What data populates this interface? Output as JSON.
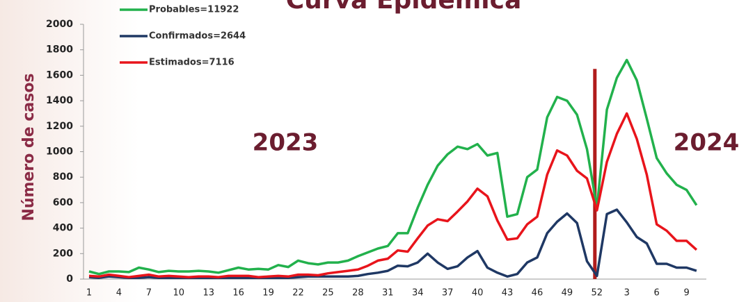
{
  "chart_data": {
    "type": "line",
    "title": "Curva Epidémica",
    "y_label": "Número de casos",
    "annotations": [
      "2023",
      "2024"
    ],
    "categories": [
      1,
      null,
      null,
      4,
      null,
      null,
      7,
      null,
      null,
      10,
      null,
      null,
      13,
      null,
      null,
      16,
      null,
      null,
      19,
      null,
      null,
      22,
      null,
      null,
      25,
      null,
      null,
      28,
      null,
      null,
      31,
      null,
      null,
      34,
      null,
      null,
      37,
      null,
      null,
      40,
      null,
      null,
      43,
      null,
      null,
      46,
      null,
      null,
      49,
      null,
      null,
      52,
      null,
      null,
      3,
      null,
      null,
      6,
      null,
      null,
      9,
      null
    ],
    "series": [
      {
        "name": "Probables=11922",
        "color": "#22b14c",
        "values": [
          60,
          40,
          60,
          60,
          55,
          90,
          75,
          55,
          65,
          60,
          60,
          65,
          60,
          50,
          70,
          90,
          75,
          80,
          75,
          110,
          95,
          145,
          125,
          115,
          130,
          130,
          145,
          180,
          210,
          240,
          260,
          360,
          360,
          560,
          740,
          890,
          980,
          1040,
          1020,
          1060,
          970,
          990,
          490,
          510,
          800,
          860,
          1270,
          1430,
          1400,
          1290,
          1020,
          560,
          1330,
          1580,
          1720,
          1560,
          1260,
          950,
          830,
          740,
          700,
          580
        ]
      },
      {
        "name": "Confirmados=2644",
        "color": "#1f3864",
        "values": [
          15,
          10,
          20,
          15,
          10,
          10,
          15,
          10,
          10,
          10,
          10,
          10,
          10,
          10,
          10,
          10,
          10,
          10,
          10,
          10,
          10,
          15,
          20,
          20,
          20,
          20,
          20,
          25,
          40,
          50,
          65,
          105,
          100,
          130,
          200,
          130,
          80,
          100,
          170,
          220,
          90,
          50,
          20,
          40,
          130,
          170,
          360,
          450,
          515,
          440,
          140,
          25,
          510,
          545,
          445,
          330,
          280,
          120,
          120,
          90,
          90,
          65
        ]
      },
      {
        "name": "Estimados=7116",
        "color": "#e8141b",
        "values": [
          25,
          20,
          35,
          25,
          15,
          25,
          35,
          20,
          25,
          20,
          15,
          20,
          20,
          15,
          25,
          25,
          25,
          15,
          20,
          25,
          20,
          35,
          35,
          30,
          45,
          55,
          65,
          75,
          105,
          145,
          160,
          225,
          215,
          320,
          420,
          470,
          455,
          530,
          610,
          710,
          650,
          460,
          310,
          320,
          430,
          490,
          820,
          1010,
          970,
          850,
          790,
          540,
          920,
          1140,
          1300,
          1100,
          820,
          430,
          380,
          300,
          300,
          230
        ]
      }
    ],
    "vline": {
      "category": 52,
      "ylim": [
        0,
        1650
      ],
      "color": "#b01c1c"
    },
    "ylim": [
      0,
      2000
    ],
    "yticks": [
      0,
      200,
      400,
      600,
      800,
      1000,
      1200,
      1400,
      1600,
      1800,
      2000
    ],
    "legend": "top-left"
  }
}
